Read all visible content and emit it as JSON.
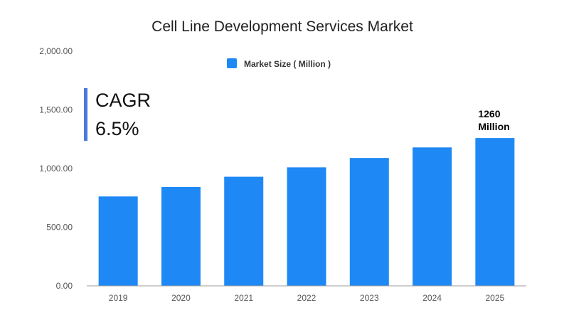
{
  "colors": {
    "bar": "#1e88f5",
    "axis": "#9e9e9e",
    "text": "#222222",
    "cagr_bar": "#4a7bd8"
  },
  "chart_data": {
    "type": "bar",
    "title": "Cell Line Development Services Market",
    "categories": [
      "2019",
      "2020",
      "2021",
      "2022",
      "2023",
      "2024",
      "2025"
    ],
    "series": [
      {
        "name": "Market Size ( Million )",
        "values": [
          762,
          843,
          930,
          1010,
          1090,
          1180,
          1260
        ]
      }
    ],
    "ylim": [
      0,
      2000
    ],
    "yticks": [
      0,
      500,
      1000,
      1500,
      2000
    ],
    "ytick_labels": [
      "0.00",
      "500.00",
      "1,000.00",
      "1,500.00",
      "2,000.00"
    ],
    "grid": false,
    "legend_position": "top-center",
    "annotations": {
      "cagr_label": "CAGR",
      "cagr_value": "6.5%",
      "last_value": "1260",
      "last_unit": "Million"
    }
  }
}
